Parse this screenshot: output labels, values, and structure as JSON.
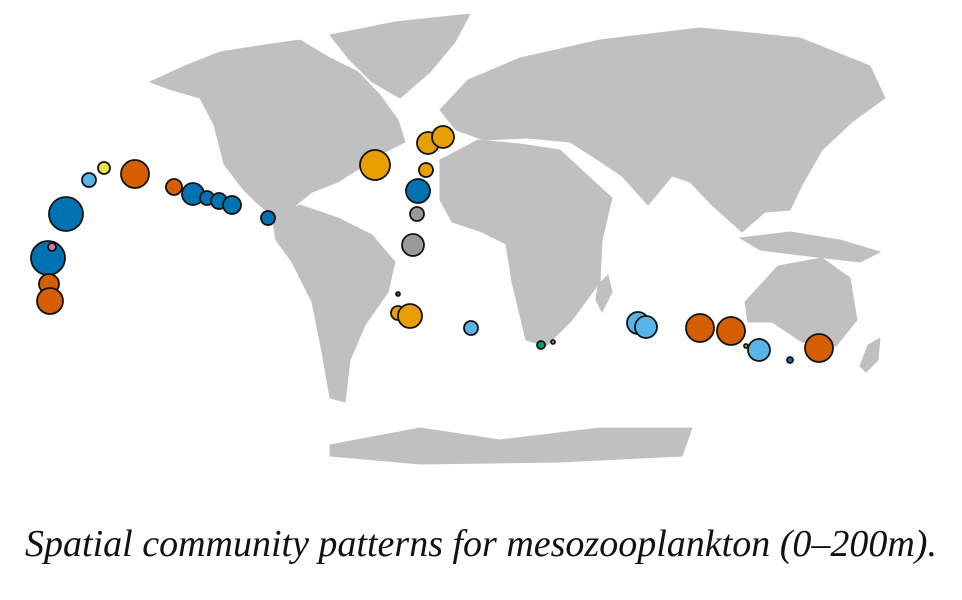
{
  "caption": "Spatial community patterns for mesozooplankton (0–200m)."
}
